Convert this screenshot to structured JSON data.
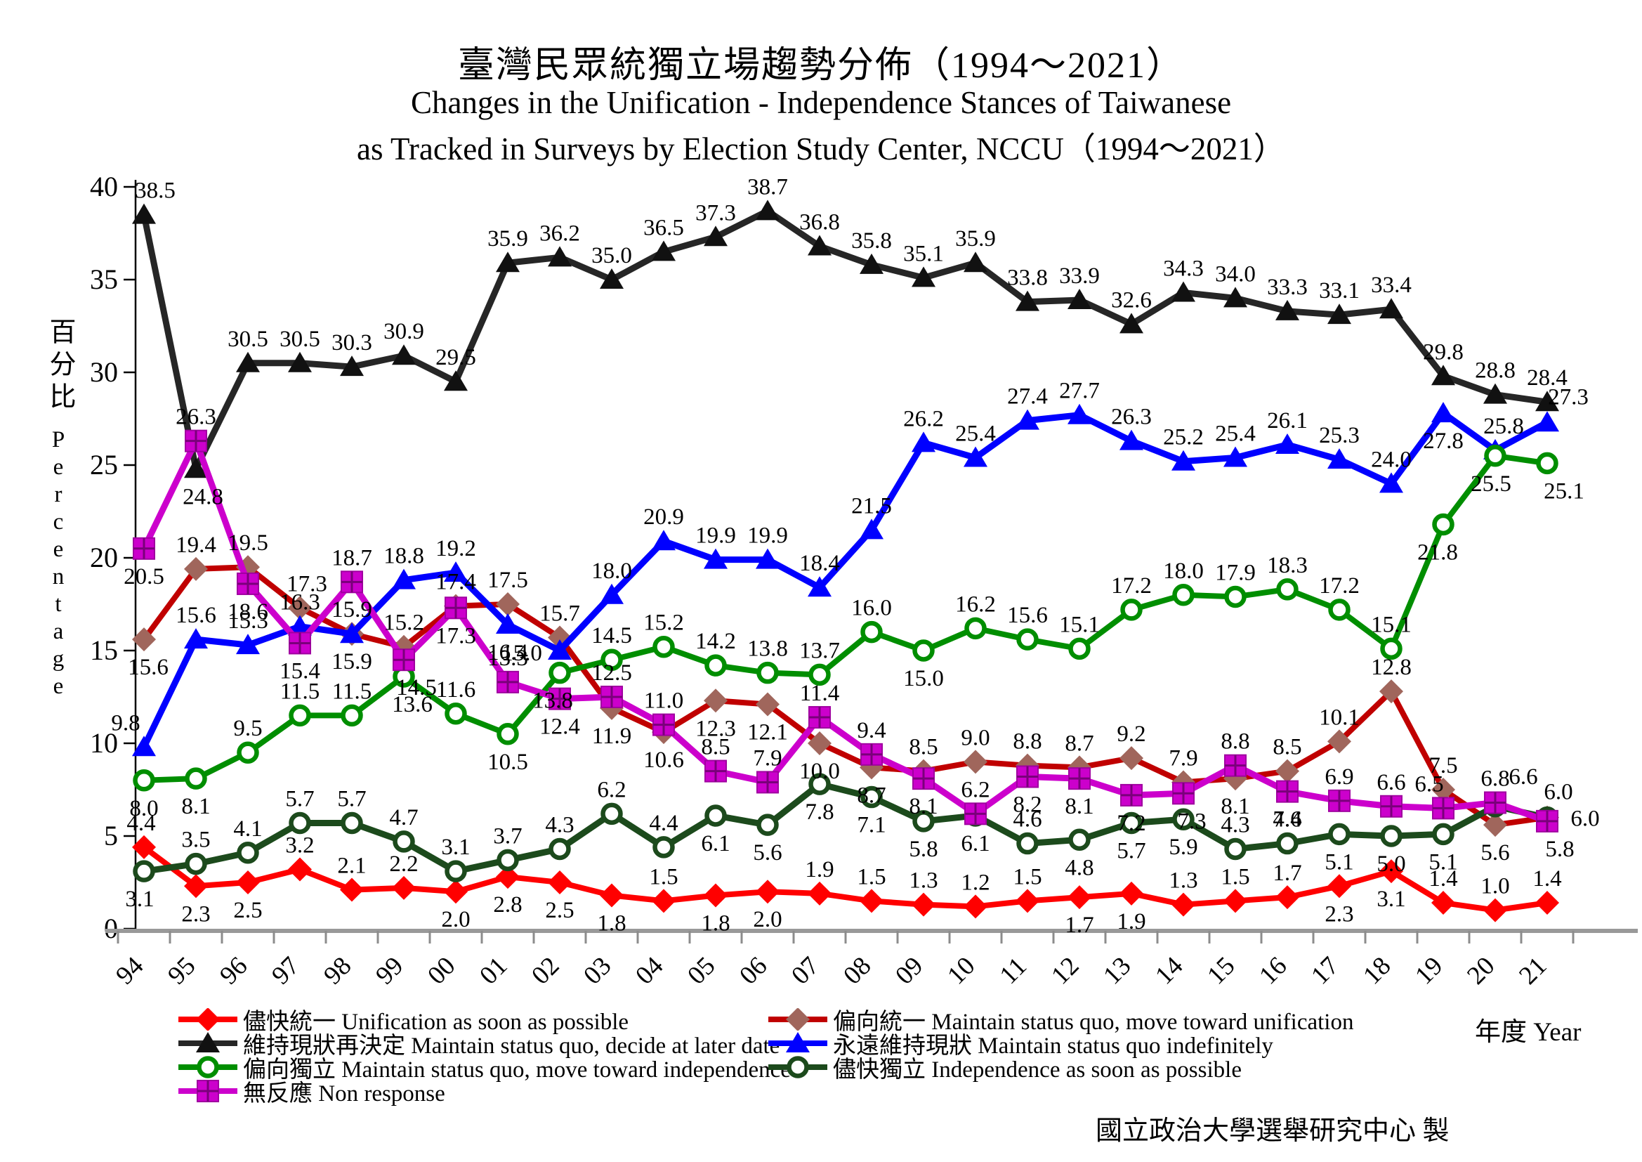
{
  "title": {
    "zh": "臺灣民眾統獨立場趨勢分佈（1994～2021）",
    "en1": "Changes in the Unification - Independence Stances of Taiwanese",
    "en2": "as Tracked in Surveys by Election Study Center, NCCU（1994～2021）"
  },
  "axes": {
    "y_label_zh": "百分比",
    "y_label_en": "Percentage",
    "y_ticks": [
      0,
      5,
      10,
      15,
      20,
      25,
      30,
      35,
      40
    ],
    "x_label": "年度 Year"
  },
  "footer": "國立政治大學選舉研究中心 製",
  "chart_data": {
    "type": "line",
    "title": "臺灣民眾統獨立場趨勢分佈（1994～2021）",
    "xlabel": "年度 Year",
    "ylabel": "百分比 Percentage",
    "ylim": [
      0,
      40
    ],
    "grid": false,
    "legend_position": "bottom",
    "categories": [
      "94",
      "95",
      "96",
      "97",
      "98",
      "99",
      "00",
      "01",
      "02",
      "03",
      "04",
      "05",
      "06",
      "07",
      "08",
      "09",
      "10",
      "11",
      "12",
      "13",
      "14",
      "15",
      "16",
      "17",
      "18",
      "19",
      "20",
      "21"
    ],
    "series": [
      {
        "id": "unification-asap",
        "name_zh": "儘快統一",
        "name_en": "Unification as soon as possible",
        "color": "#FF0000",
        "marker": "diamond",
        "marker_color": "#FF0000",
        "values": [
          4.4,
          2.3,
          2.5,
          3.2,
          2.1,
          2.2,
          2.0,
          2.8,
          2.5,
          1.8,
          1.5,
          1.8,
          2.0,
          1.9,
          1.5,
          1.3,
          1.2,
          1.5,
          1.7,
          1.9,
          1.3,
          1.5,
          1.7,
          2.3,
          3.1,
          1.4,
          1.0,
          1.4
        ]
      },
      {
        "id": "lean-unification",
        "name_zh": "偏向統一",
        "name_en": "Maintain status quo, move toward unification",
        "color": "#C00000",
        "marker": "diamond",
        "marker_color": "#A0665C",
        "values": [
          15.6,
          19.4,
          19.5,
          17.3,
          15.9,
          15.2,
          17.4,
          17.5,
          15.7,
          11.9,
          10.6,
          12.3,
          12.1,
          10.0,
          8.7,
          8.5,
          9.0,
          8.8,
          8.7,
          9.2,
          7.9,
          8.1,
          8.5,
          10.1,
          12.8,
          7.5,
          5.6,
          6.0
        ]
      },
      {
        "id": "status-quo-decide-later",
        "name_zh": "維持現狀再決定",
        "name_en": "Maintain status quo, decide at later date",
        "color": "#262626",
        "marker": "triangle",
        "marker_color": "#111111",
        "values": [
          38.5,
          24.8,
          30.5,
          30.5,
          30.3,
          30.9,
          29.5,
          35.9,
          36.2,
          35.0,
          36.5,
          37.3,
          38.7,
          36.8,
          35.8,
          35.1,
          35.9,
          33.8,
          33.9,
          32.6,
          34.3,
          34.0,
          33.3,
          33.1,
          33.4,
          29.8,
          28.8,
          28.4
        ]
      },
      {
        "id": "status-quo-indefinitely",
        "name_zh": "永遠維持現狀",
        "name_en": "Maintain status quo indefinitely",
        "color": "#0000FF",
        "marker": "triangle",
        "marker_color": "#0000FF",
        "values": [
          9.8,
          15.6,
          15.3,
          16.3,
          15.9,
          18.8,
          19.2,
          16.4,
          15.0,
          18.0,
          20.9,
          19.9,
          19.9,
          18.4,
          21.5,
          26.2,
          25.4,
          27.4,
          27.7,
          26.3,
          25.2,
          25.4,
          26.1,
          25.3,
          24.0,
          27.8,
          25.8,
          27.3
        ]
      },
      {
        "id": "lean-independence",
        "name_zh": "偏向獨立",
        "name_en": "Maintain status quo, move toward independence",
        "color": "#008E00",
        "marker": "circle-open",
        "marker_color": "#008E00",
        "values": [
          8.0,
          8.1,
          9.5,
          11.5,
          11.5,
          13.6,
          11.6,
          10.5,
          13.8,
          14.5,
          15.2,
          14.2,
          13.8,
          13.7,
          16.0,
          15.0,
          16.2,
          15.6,
          15.1,
          17.2,
          18.0,
          17.9,
          18.3,
          17.2,
          15.1,
          21.8,
          25.5,
          25.1
        ]
      },
      {
        "id": "independence-asap",
        "name_zh": "儘快獨立",
        "name_en": "Independence as soon as possible",
        "color": "#1C4A1C",
        "marker": "circle-open",
        "marker_color": "#1C4A1C",
        "values": [
          3.1,
          3.5,
          4.1,
          5.7,
          5.7,
          4.7,
          3.1,
          3.7,
          4.3,
          6.2,
          4.4,
          6.1,
          5.6,
          7.8,
          7.1,
          5.8,
          6.1,
          4.6,
          4.8,
          5.7,
          5.9,
          4.3,
          4.6,
          5.1,
          5.0,
          5.1,
          6.6,
          6.0
        ]
      },
      {
        "id": "non-response",
        "name_zh": "無反應",
        "name_en": "Non response",
        "color": "#CC00CC",
        "marker": "square-cross",
        "marker_color": "#CC00CC",
        "values": [
          20.5,
          26.3,
          18.6,
          15.4,
          18.7,
          14.5,
          17.3,
          13.3,
          12.4,
          12.5,
          11.0,
          8.5,
          7.9,
          11.4,
          9.4,
          8.1,
          6.2,
          8.2,
          8.1,
          7.2,
          7.3,
          8.8,
          7.4,
          6.9,
          6.6,
          6.5,
          6.8,
          5.8
        ]
      }
    ]
  }
}
